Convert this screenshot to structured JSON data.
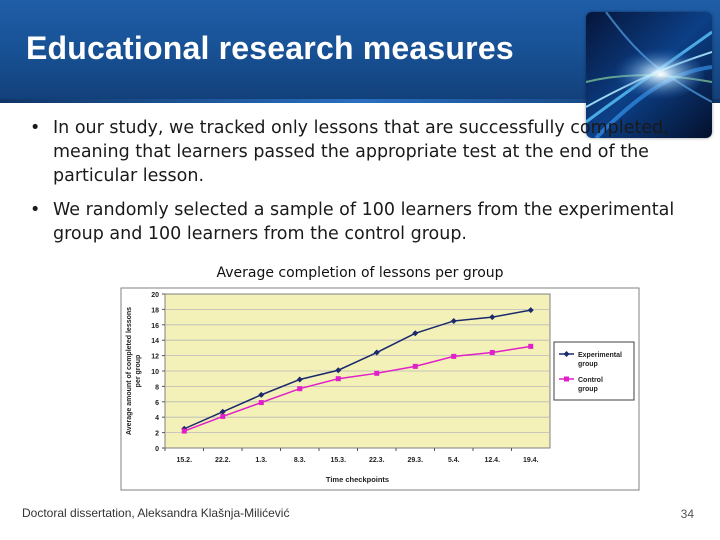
{
  "slide": {
    "title": "Educational research measures",
    "bullets": [
      "In our study, we tracked only lessons that are successfully completed, meaning that learners passed the appropriate test at the end of the particular lesson.",
      "We randomly selected a sample of 100 learners from the experimental group and 100 learners from the control group."
    ],
    "bullet_symbol": "•",
    "footer": "Doctoral dissertation, Aleksandra Klašnja-Milićević",
    "page_number": "34"
  },
  "chart_data": {
    "type": "line",
    "title": "Average completion of lessons per group",
    "xlabel": "Time checkpoints",
    "ylabel": "Average amount of completed lessons per group",
    "categories": [
      "15.2.",
      "22.2.",
      "1.3.",
      "8.3.",
      "15.3.",
      "22.3.",
      "29.3.",
      "5.4.",
      "12.4.",
      "19.4."
    ],
    "ylim": [
      0,
      20
    ],
    "yticks": [
      0,
      2,
      4,
      6,
      8,
      10,
      12,
      14,
      16,
      18,
      20
    ],
    "grid": true,
    "legend_position": "right",
    "plot_background": "#f3f0b8",
    "series": [
      {
        "name": "Experimental group",
        "color": "#1a2a6c",
        "marker": "diamond",
        "values": [
          2.5,
          4.7,
          6.9,
          8.9,
          10.1,
          12.4,
          14.9,
          16.5,
          17.0,
          17.9
        ]
      },
      {
        "name": "Control group",
        "color": "#e020c8",
        "marker": "square",
        "values": [
          2.2,
          4.1,
          5.9,
          7.7,
          9.0,
          9.7,
          10.6,
          11.9,
          12.4,
          13.2
        ]
      }
    ]
  }
}
